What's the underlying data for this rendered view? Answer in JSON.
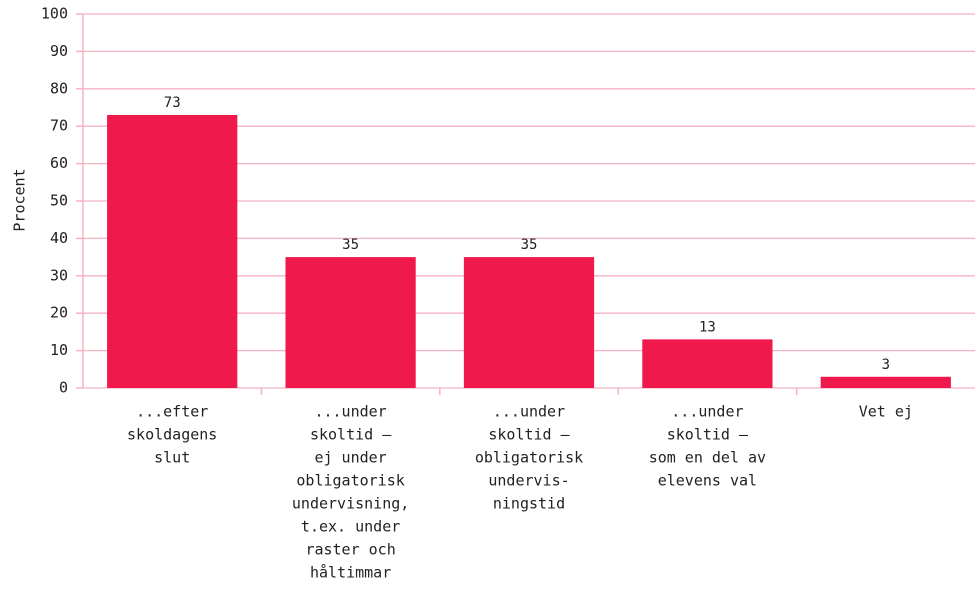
{
  "chart_data": {
    "type": "bar",
    "y_label": "Procent",
    "categories": [
      [
        "...efter",
        "skoldagens",
        "slut"
      ],
      [
        "...under",
        "skoltid –",
        "ej under",
        "obligatorisk",
        "undervisning,",
        "t.ex. under",
        "raster och",
        "håltimmar"
      ],
      [
        "...under",
        "skoltid –",
        "obligatorisk",
        "undervis-",
        "ningstid"
      ],
      [
        "...under",
        "skoltid –",
        "som en del av",
        "elevens val"
      ],
      [
        "Vet ej"
      ]
    ],
    "values": [
      73,
      35,
      35,
      13,
      3
    ],
    "color": "#f0194b",
    "ylim": [
      0,
      100
    ],
    "yticks": [
      0,
      10,
      20,
      30,
      40,
      50,
      60,
      70,
      80,
      90,
      100
    ],
    "grid": true
  }
}
